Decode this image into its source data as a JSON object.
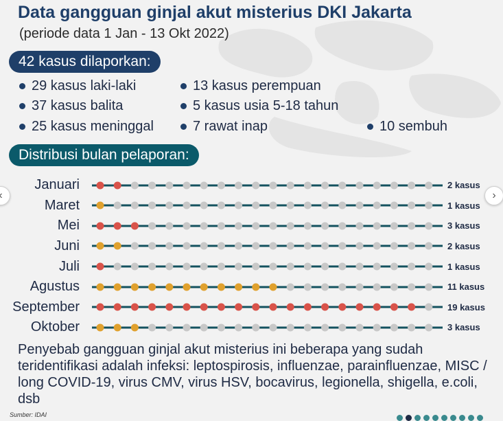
{
  "header": {
    "title": "Data gangguan ginjal akut misterius DKI Jakarta",
    "subtitle": "(periode data 1 Jan - 13 Okt 2022)"
  },
  "summary": {
    "badge": "42 kasus dilaporkan:",
    "facts": [
      "29 kasus laki-laki",
      "13 kasus perempuan",
      "37 kasus balita",
      "5 kasus usia 5-18 tahun",
      "25 kasus meninggal",
      "7 rawat inap",
      "10 sembuh"
    ]
  },
  "distribution": {
    "badge": "Distribusi bulan pelaporan:"
  },
  "chart_data": {
    "type": "dot-matrix",
    "title": "Distribusi bulan pelaporan:",
    "dots_per_row": 20,
    "colors": {
      "meninggal": "#d9534a",
      "recovered_or_inpatient": "#e0a12e",
      "empty": "#c8c8c8",
      "line": "#14525f"
    },
    "rows": [
      {
        "month": "Januari",
        "label": "2 kasus",
        "cases": 2,
        "colors": [
          "r",
          "r"
        ]
      },
      {
        "month": "Maret",
        "label": "1 kasus",
        "cases": 1,
        "colors": [
          "y"
        ]
      },
      {
        "month": "Mei",
        "label": "3 kasus",
        "cases": 3,
        "colors": [
          "r",
          "r",
          "r"
        ]
      },
      {
        "month": "Juni",
        "label": "2 kasus",
        "cases": 2,
        "colors": [
          "y",
          "y"
        ]
      },
      {
        "month": "Juli",
        "label": "1 kasus",
        "cases": 1,
        "colors": [
          "r"
        ]
      },
      {
        "month": "Agustus",
        "label": "11 kasus",
        "cases": 11,
        "colors": [
          "y",
          "y",
          "y",
          "y",
          "y",
          "y",
          "y",
          "y",
          "y",
          "y",
          "y"
        ]
      },
      {
        "month": "September",
        "label": "19 kasus",
        "cases": 19,
        "colors": [
          "r",
          "r",
          "r",
          "r",
          "r",
          "r",
          "r",
          "r",
          "r",
          "r",
          "r",
          "r",
          "r",
          "r",
          "r",
          "r",
          "r",
          "r",
          "r"
        ]
      },
      {
        "month": "Oktober",
        "label": "3 kasus",
        "cases": 3,
        "colors": [
          "y",
          "y",
          "y"
        ]
      }
    ]
  },
  "note": "Penyebab gangguan ginjal akut misterius ini beberapa yang sudah teridentifikasi adalah infeksi: leptospirosis, influenzae, parainfluenzae, MISC / long COVID-19, virus CMV, virus HSV, bocavirus, legionella, shigella, e.coli, dsb",
  "source": "Sumber: IDAI",
  "navigation": {
    "prev_icon": "chevron-left-icon",
    "next_icon": "chevron-right-icon"
  }
}
